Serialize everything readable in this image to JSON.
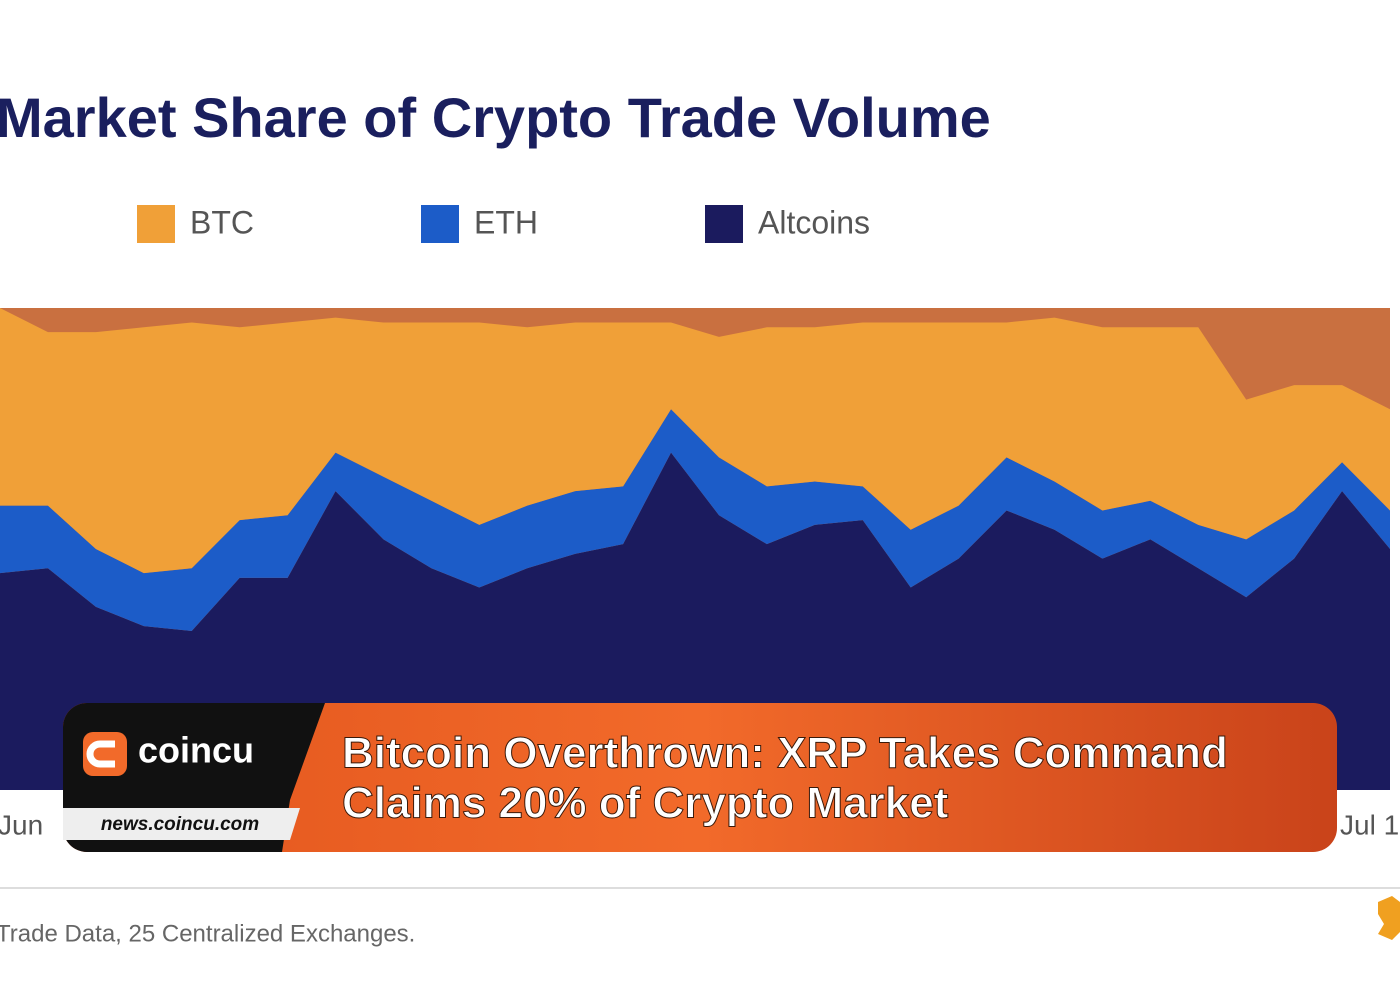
{
  "chart_data": {
    "type": "stacked_area",
    "title": "Market Share of Crypto Trade Volume",
    "legend": "top",
    "categories": [
      "Jun",
      null,
      null,
      null,
      null,
      null,
      null,
      null,
      null,
      null,
      null,
      null,
      null,
      null,
      null,
      null,
      null,
      null,
      null,
      null,
      null,
      null,
      null,
      null,
      null,
      null,
      null,
      null,
      null,
      "Jul 1"
    ],
    "ylim": [
      0,
      100
    ],
    "series": [
      {
        "name": "Altcoins",
        "color": "#1b1b5e",
        "values": [
          45,
          46,
          38,
          34,
          33,
          44,
          44,
          62,
          52,
          46,
          42,
          46,
          49,
          51,
          70,
          57,
          51,
          55,
          56,
          42,
          48,
          58,
          54,
          48,
          52,
          46,
          40,
          48,
          62,
          50
        ]
      },
      {
        "name": "ETH",
        "color": "#1c5cc8",
        "values": [
          14,
          13,
          12,
          11,
          13,
          12,
          13,
          8,
          13,
          14,
          13,
          13,
          13,
          12,
          9,
          12,
          12,
          9,
          7,
          12,
          11,
          11,
          10,
          10,
          8,
          9,
          12,
          10,
          6,
          8
        ]
      },
      {
        "name": "BTC",
        "color": "#f0a038",
        "values": [
          41,
          36,
          45,
          51,
          51,
          40,
          40,
          28,
          32,
          37,
          42,
          37,
          35,
          34,
          18,
          25,
          33,
          32,
          34,
          43,
          38,
          28,
          34,
          38,
          36,
          41,
          29,
          26,
          16,
          21
        ]
      }
    ]
  },
  "banner": {
    "brand": "coincu",
    "site": "news.coincu.com",
    "headline": [
      "Bitcoin Overthrown: XRP Takes Command",
      "Claims 20% of Crypto Market"
    ]
  },
  "footer": {
    "source": "Trade Data, 25 Centralized Exchanges."
  }
}
